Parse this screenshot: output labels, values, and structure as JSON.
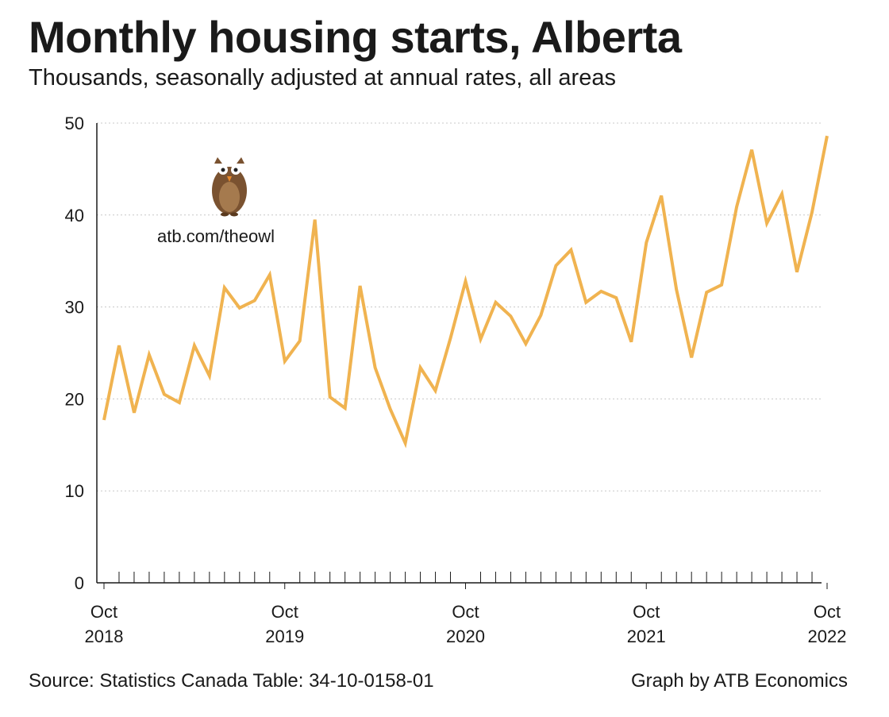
{
  "header": {
    "title": "Monthly housing starts, Alberta",
    "subtitle": "Thousands, seasonally adjusted at annual rates, all areas"
  },
  "footer": {
    "source": "Source: Statistics Canada Table: 34-10-0158-01",
    "credit": "Graph by ATB Economics"
  },
  "logo": {
    "link_text": "atb.com/theowl",
    "owl_body_color": "#7a5230",
    "owl_light_color": "#a57a4e"
  },
  "chart_data": {
    "type": "line",
    "title": "Monthly housing starts, Alberta",
    "ylabel": "Thousands",
    "xlabel": "",
    "ylim": [
      0,
      50
    ],
    "yticks": [
      0,
      10,
      20,
      30,
      40,
      50
    ],
    "grid": true,
    "line_color": "#f0b350",
    "x_labels": [
      {
        "index": 0,
        "month": "Oct",
        "year": "2018"
      },
      {
        "index": 12,
        "month": "Oct",
        "year": "2019"
      },
      {
        "index": 24,
        "month": "Oct",
        "year": "2020"
      },
      {
        "index": 36,
        "month": "Oct",
        "year": "2021"
      },
      {
        "index": 48,
        "month": "Oct",
        "year": "2022"
      }
    ],
    "series": [
      {
        "name": "Housing starts",
        "start": "Oct 2018",
        "values": [
          17.7,
          25.8,
          18.5,
          24.8,
          20.5,
          19.6,
          25.8,
          22.5,
          32.1,
          29.9,
          30.7,
          33.5,
          24.1,
          26.3,
          39.5,
          20.2,
          19.0,
          32.3,
          23.4,
          18.9,
          15.2,
          23.4,
          20.9,
          26.6,
          32.8,
          26.5,
          30.5,
          29.0,
          26.0,
          29.1,
          34.5,
          36.2,
          30.5,
          31.7,
          31.0,
          26.2,
          37.0,
          42.1,
          31.9,
          24.5,
          31.6,
          32.4,
          40.9,
          47.1,
          39.1,
          42.3,
          33.8,
          40.3,
          48.6
        ]
      }
    ]
  }
}
